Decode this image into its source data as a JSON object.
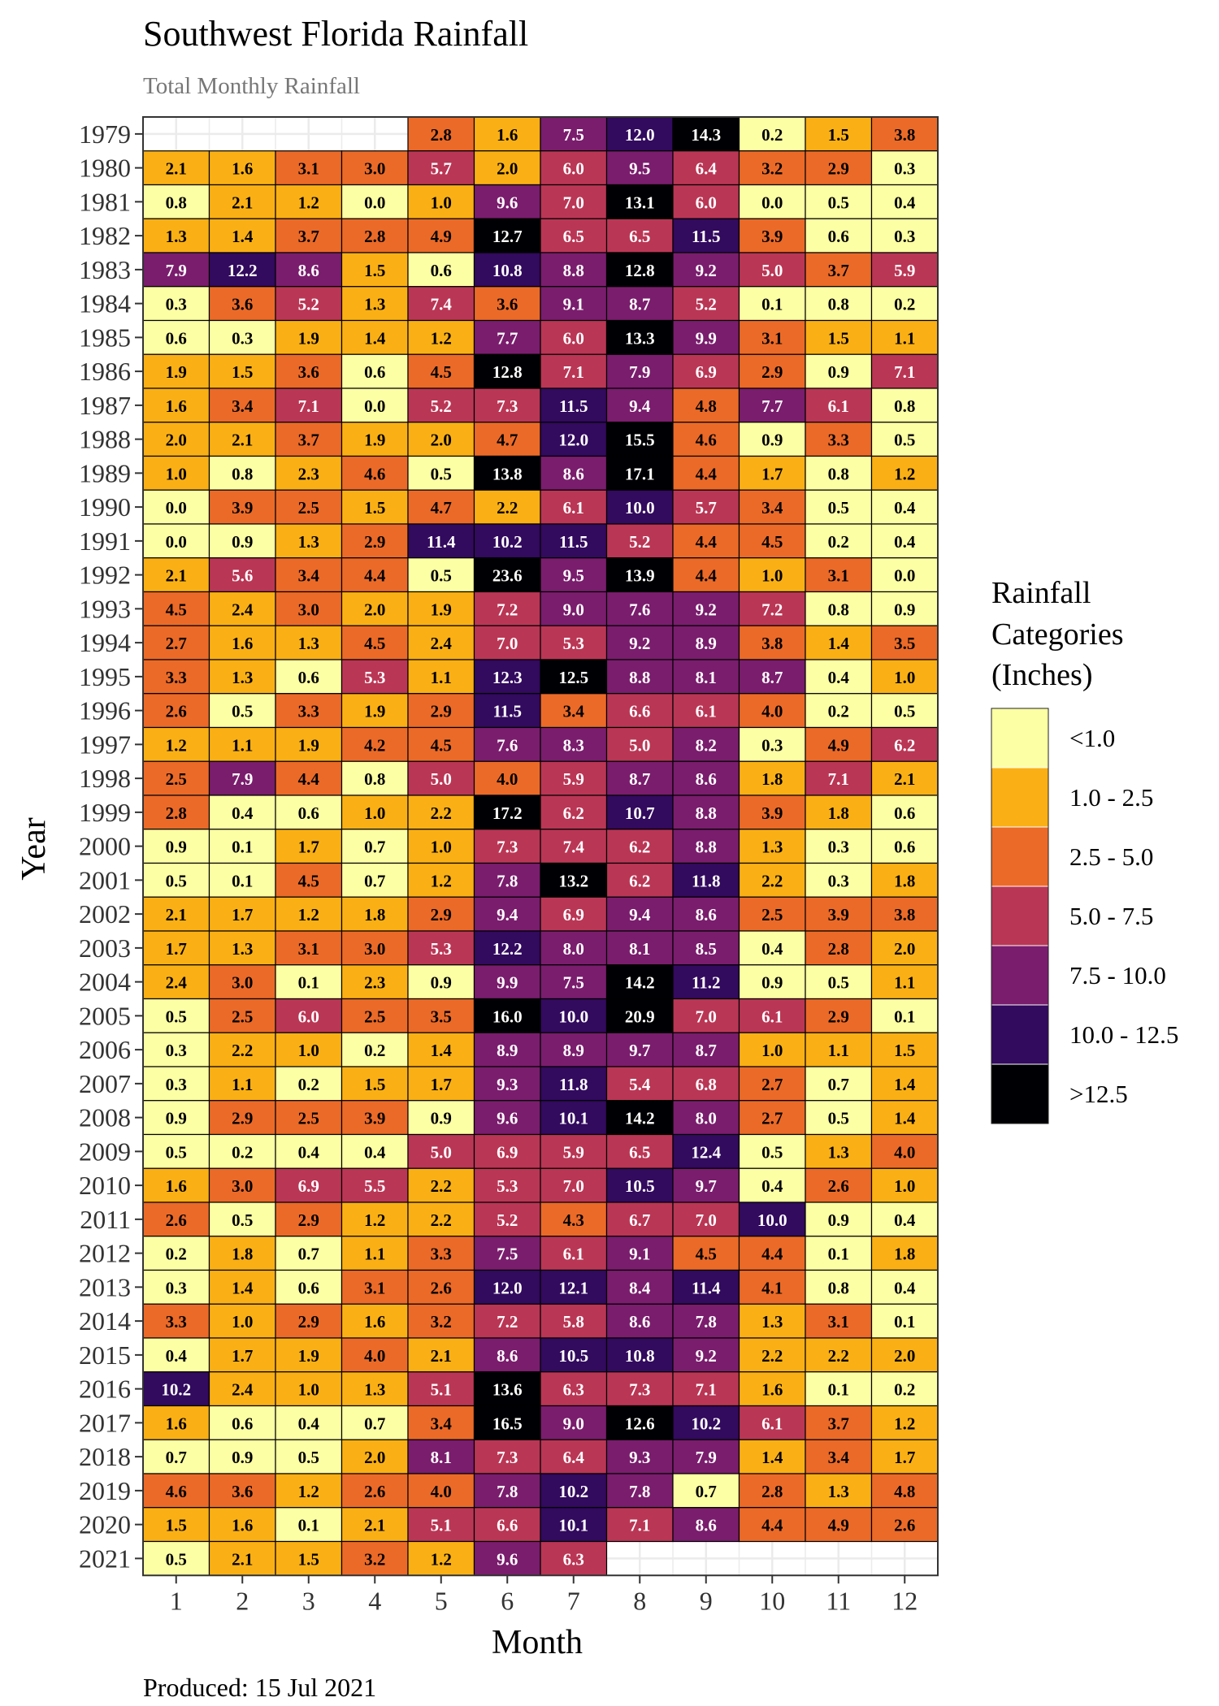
{
  "chart_data": {
    "type": "heatmap",
    "title": "Southwest Florida Rainfall",
    "subtitle": "Total Monthly Rainfall",
    "xlabel": "Month",
    "ylabel": "Year",
    "caption": "Produced: 15 Jul 2021",
    "x": [
      "1",
      "2",
      "3",
      "4",
      "5",
      "6",
      "7",
      "8",
      "9",
      "10",
      "11",
      "12"
    ],
    "y": [
      "1979",
      "1980",
      "1981",
      "1982",
      "1983",
      "1984",
      "1985",
      "1986",
      "1987",
      "1988",
      "1989",
      "1990",
      "1991",
      "1992",
      "1993",
      "1994",
      "1995",
      "1996",
      "1997",
      "1998",
      "1999",
      "2000",
      "2001",
      "2002",
      "2003",
      "2004",
      "2005",
      "2006",
      "2007",
      "2008",
      "2009",
      "2010",
      "2011",
      "2012",
      "2013",
      "2014",
      "2015",
      "2016",
      "2017",
      "2018",
      "2019",
      "2020",
      "2021"
    ],
    "values": [
      [
        null,
        null,
        null,
        null,
        2.8,
        1.6,
        7.5,
        12.0,
        14.3,
        0.2,
        1.5,
        3.8
      ],
      [
        2.1,
        1.6,
        3.1,
        3.0,
        5.7,
        2.0,
        6.0,
        9.5,
        6.4,
        3.2,
        2.9,
        0.3
      ],
      [
        0.8,
        2.1,
        1.2,
        0.0,
        1.0,
        9.6,
        7.0,
        13.1,
        6.0,
        0.0,
        0.5,
        0.4
      ],
      [
        1.3,
        1.4,
        3.7,
        2.8,
        4.9,
        12.7,
        6.5,
        6.5,
        11.5,
        3.9,
        0.6,
        0.3
      ],
      [
        7.9,
        12.2,
        8.6,
        1.5,
        0.6,
        10.8,
        8.8,
        12.8,
        9.2,
        5.0,
        3.7,
        5.9
      ],
      [
        0.3,
        3.6,
        5.2,
        1.3,
        7.4,
        3.6,
        9.1,
        8.7,
        5.2,
        0.1,
        0.8,
        0.2
      ],
      [
        0.6,
        0.3,
        1.9,
        1.4,
        1.2,
        7.7,
        6.0,
        13.3,
        9.9,
        3.1,
        1.5,
        1.1
      ],
      [
        1.9,
        1.5,
        3.6,
        0.6,
        4.5,
        12.8,
        7.1,
        7.9,
        6.9,
        2.9,
        0.9,
        7.1
      ],
      [
        1.6,
        3.4,
        7.1,
        0.0,
        5.2,
        7.3,
        11.5,
        9.4,
        4.8,
        7.7,
        6.1,
        0.8
      ],
      [
        2.0,
        2.1,
        3.7,
        1.9,
        2.0,
        4.7,
        12.0,
        15.5,
        4.6,
        0.9,
        3.3,
        0.5
      ],
      [
        1.0,
        0.8,
        2.3,
        4.6,
        0.5,
        13.8,
        8.6,
        17.1,
        4.4,
        1.7,
        0.8,
        1.2
      ],
      [
        0.0,
        3.9,
        2.5,
        1.5,
        4.7,
        2.2,
        6.1,
        10.0,
        5.7,
        3.4,
        0.5,
        0.4
      ],
      [
        0.0,
        0.9,
        1.3,
        2.9,
        11.4,
        10.2,
        11.5,
        5.2,
        4.4,
        4.5,
        0.2,
        0.4
      ],
      [
        2.1,
        5.6,
        3.4,
        4.4,
        0.5,
        23.6,
        9.5,
        13.9,
        4.4,
        1.0,
        3.1,
        0.0
      ],
      [
        4.5,
        2.4,
        3.0,
        2.0,
        1.9,
        7.2,
        9.0,
        7.6,
        9.2,
        7.2,
        0.8,
        0.9
      ],
      [
        2.7,
        1.6,
        1.3,
        4.5,
        2.4,
        7.0,
        5.3,
        9.2,
        8.9,
        3.8,
        1.4,
        3.5
      ],
      [
        3.3,
        1.3,
        0.6,
        5.3,
        1.1,
        12.3,
        12.5,
        8.8,
        8.1,
        8.7,
        0.4,
        1.0
      ],
      [
        2.6,
        0.5,
        3.3,
        1.9,
        2.9,
        11.5,
        3.4,
        6.6,
        6.1,
        4.0,
        0.2,
        0.5
      ],
      [
        1.2,
        1.1,
        1.9,
        4.2,
        4.5,
        7.6,
        8.3,
        5.0,
        8.2,
        0.3,
        4.9,
        6.2
      ],
      [
        2.5,
        7.9,
        4.4,
        0.8,
        5.0,
        4.0,
        5.9,
        8.7,
        8.6,
        1.8,
        7.1,
        2.1
      ],
      [
        2.8,
        0.4,
        0.6,
        1.0,
        2.2,
        17.2,
        6.2,
        10.7,
        8.8,
        3.9,
        1.8,
        0.6
      ],
      [
        0.9,
        0.1,
        1.7,
        0.7,
        1.0,
        7.3,
        7.4,
        6.2,
        8.8,
        1.3,
        0.3,
        0.6
      ],
      [
        0.5,
        0.1,
        4.5,
        0.7,
        1.2,
        7.8,
        13.2,
        6.2,
        11.8,
        2.2,
        0.3,
        1.8
      ],
      [
        2.1,
        1.7,
        1.2,
        1.8,
        2.9,
        9.4,
        6.9,
        9.4,
        8.6,
        2.5,
        3.9,
        3.8
      ],
      [
        1.7,
        1.3,
        3.1,
        3.0,
        5.3,
        12.2,
        8.0,
        8.1,
        8.5,
        0.4,
        2.8,
        2.0
      ],
      [
        2.4,
        3.0,
        0.1,
        2.3,
        0.9,
        9.9,
        7.5,
        14.2,
        11.2,
        0.9,
        0.5,
        1.1
      ],
      [
        0.5,
        2.5,
        6.0,
        2.5,
        3.5,
        16.0,
        10.0,
        20.9,
        7.0,
        6.1,
        2.9,
        0.1
      ],
      [
        0.3,
        2.2,
        1.0,
        0.2,
        1.4,
        8.9,
        8.9,
        9.7,
        8.7,
        1.0,
        1.1,
        1.5
      ],
      [
        0.3,
        1.1,
        0.2,
        1.5,
        1.7,
        9.3,
        11.8,
        5.4,
        6.8,
        2.7,
        0.7,
        1.4
      ],
      [
        0.9,
        2.9,
        2.5,
        3.9,
        0.9,
        9.6,
        10.1,
        14.2,
        8.0,
        2.7,
        0.5,
        1.4
      ],
      [
        0.5,
        0.2,
        0.4,
        0.4,
        5.0,
        6.9,
        5.9,
        6.5,
        12.4,
        0.5,
        1.3,
        4.0
      ],
      [
        1.6,
        3.0,
        6.9,
        5.5,
        2.2,
        5.3,
        7.0,
        10.5,
        9.7,
        0.4,
        2.6,
        1.0
      ],
      [
        2.6,
        0.5,
        2.9,
        1.2,
        2.2,
        5.2,
        4.3,
        6.7,
        7.0,
        10.0,
        0.9,
        0.4
      ],
      [
        0.2,
        1.8,
        0.7,
        1.1,
        3.3,
        7.5,
        6.1,
        9.1,
        4.5,
        4.4,
        0.1,
        1.8
      ],
      [
        0.3,
        1.4,
        0.6,
        3.1,
        2.6,
        12.0,
        12.1,
        8.4,
        11.4,
        4.1,
        0.8,
        0.4
      ],
      [
        3.3,
        1.0,
        2.9,
        1.6,
        3.2,
        7.2,
        5.8,
        8.6,
        7.8,
        1.3,
        3.1,
        0.1
      ],
      [
        0.4,
        1.7,
        1.9,
        4.0,
        2.1,
        8.6,
        10.5,
        10.8,
        9.2,
        2.2,
        2.2,
        2.0
      ],
      [
        10.2,
        2.4,
        1.0,
        1.3,
        5.1,
        13.6,
        6.3,
        7.3,
        7.1,
        1.6,
        0.1,
        0.2
      ],
      [
        1.6,
        0.6,
        0.4,
        0.7,
        3.4,
        16.5,
        9.0,
        12.6,
        10.2,
        6.1,
        3.7,
        1.2
      ],
      [
        0.7,
        0.9,
        0.5,
        2.0,
        8.1,
        7.3,
        6.4,
        9.3,
        7.9,
        1.4,
        3.4,
        1.7
      ],
      [
        4.6,
        3.6,
        1.2,
        2.6,
        4.0,
        7.8,
        10.2,
        7.8,
        0.7,
        2.8,
        1.3,
        4.8
      ],
      [
        1.5,
        1.6,
        0.1,
        2.1,
        5.1,
        6.6,
        10.1,
        7.1,
        8.6,
        4.4,
        4.9,
        2.6
      ],
      [
        0.5,
        2.1,
        1.5,
        3.2,
        1.2,
        9.6,
        6.3,
        null,
        null,
        null,
        null,
        null
      ]
    ],
    "legend": {
      "title": [
        "Rainfall",
        "Categories",
        "(Inches)"
      ],
      "placement": "right",
      "categories": [
        {
          "label": "<1.0",
          "color": "#FCFFA4"
        },
        {
          "label": "1.0 - 2.5",
          "color": "#FAB014"
        },
        {
          "label": "2.5 - 5.0",
          "color": "#EB6A28"
        },
        {
          "label": "5.0 - 7.5",
          "color": "#BA3655"
        },
        {
          "label": "7.5 - 10.0",
          "color": "#7A1D6D"
        },
        {
          "label": "10.0 - 12.5",
          "color": "#320A5E"
        },
        {
          "label": ">12.5",
          "color": "#000004"
        }
      ]
    },
    "grid": true
  }
}
